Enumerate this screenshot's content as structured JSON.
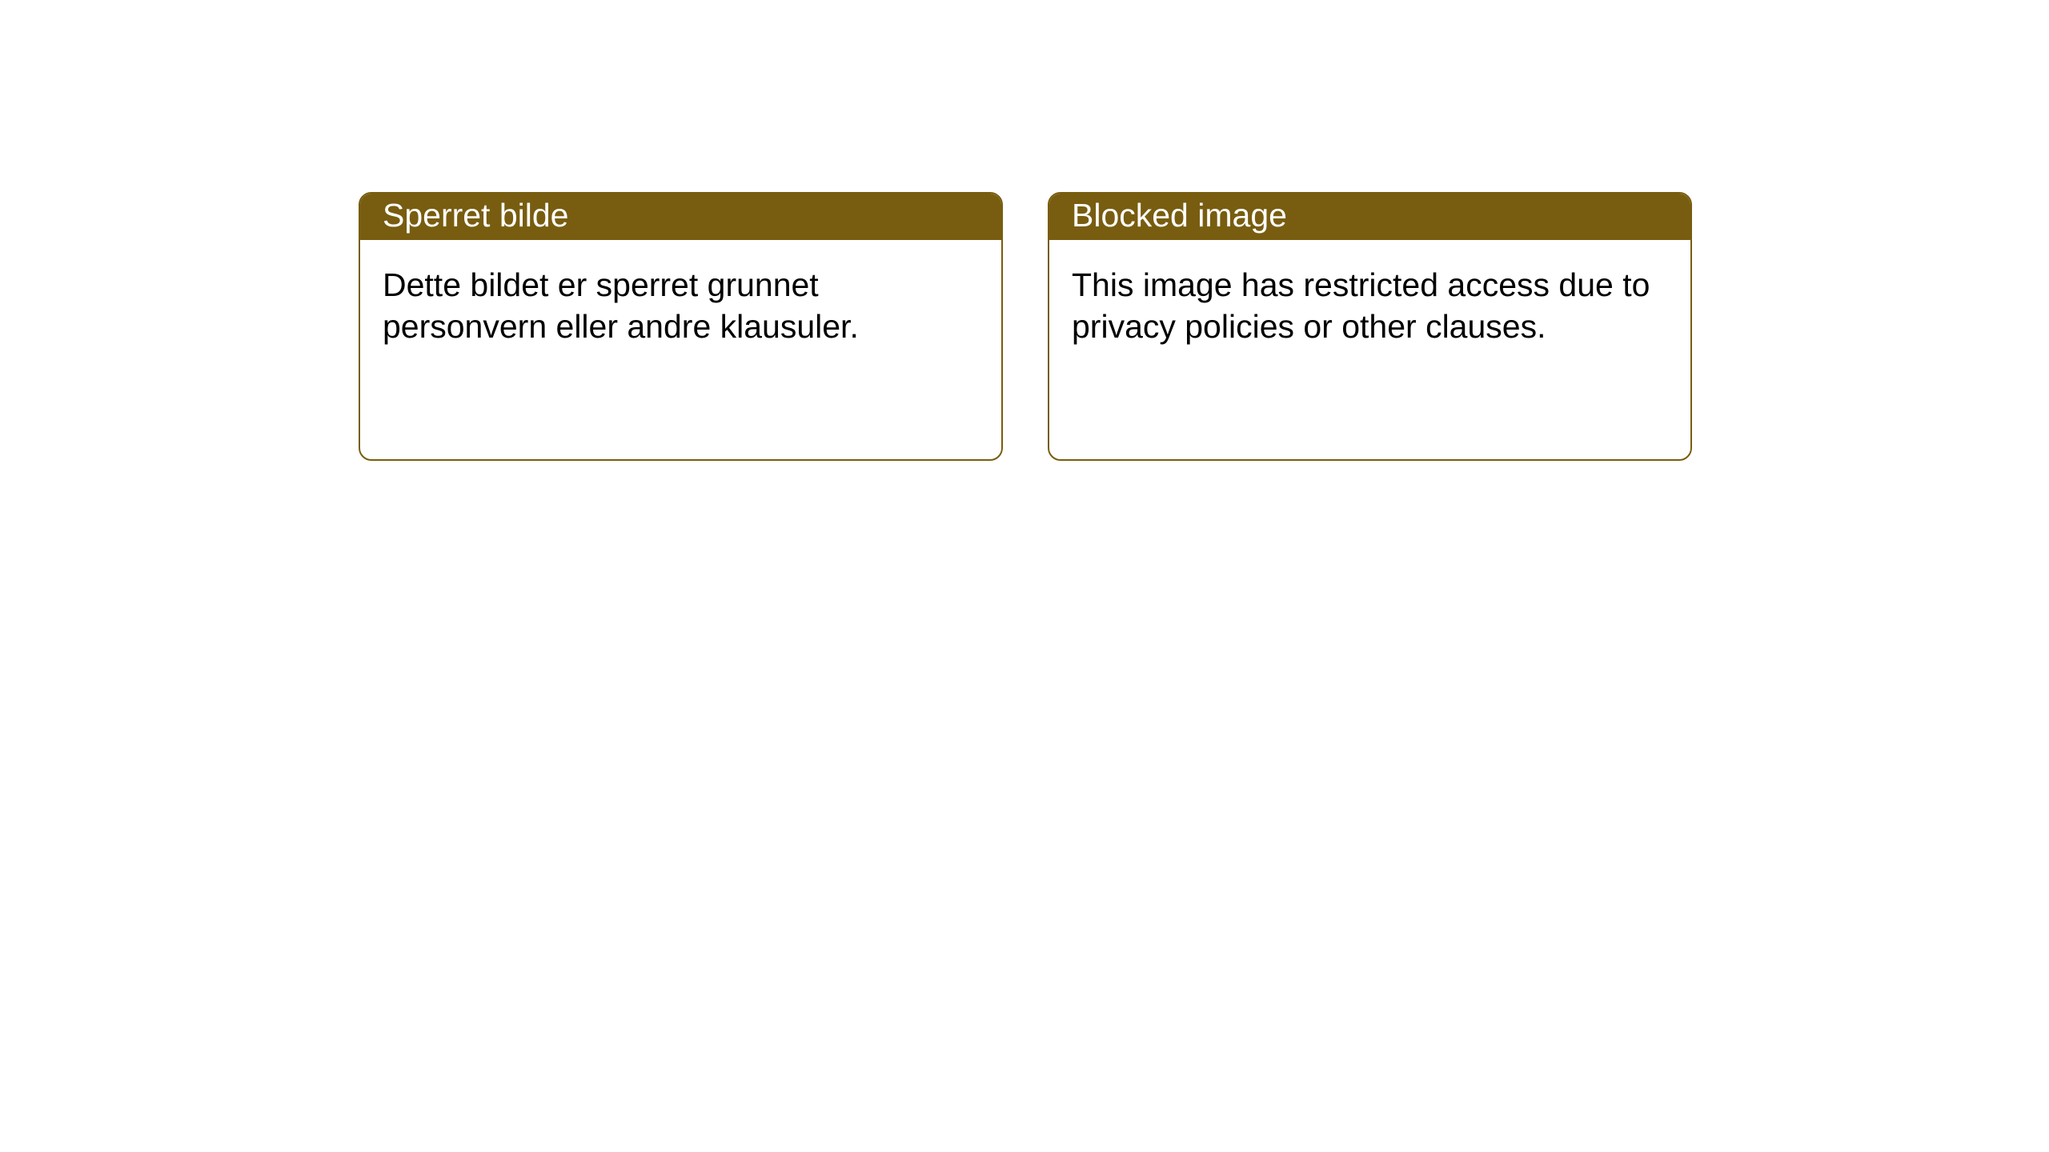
{
  "styles": {
    "header_color": "#785d10",
    "border_color": "#785d10",
    "background_color": "#ffffff",
    "text_color": "#000000",
    "header_text_color": "#ffffff",
    "card_border_radius": 16,
    "title_fontsize": 41,
    "body_fontsize": 41
  },
  "cards": [
    {
      "title": "Sperret bilde",
      "body": "Dette bildet er sperret grunnet personvern eller andre klausuler."
    },
    {
      "title": "Blocked image",
      "body": "This image has restricted access due to privacy policies or other clauses."
    }
  ]
}
